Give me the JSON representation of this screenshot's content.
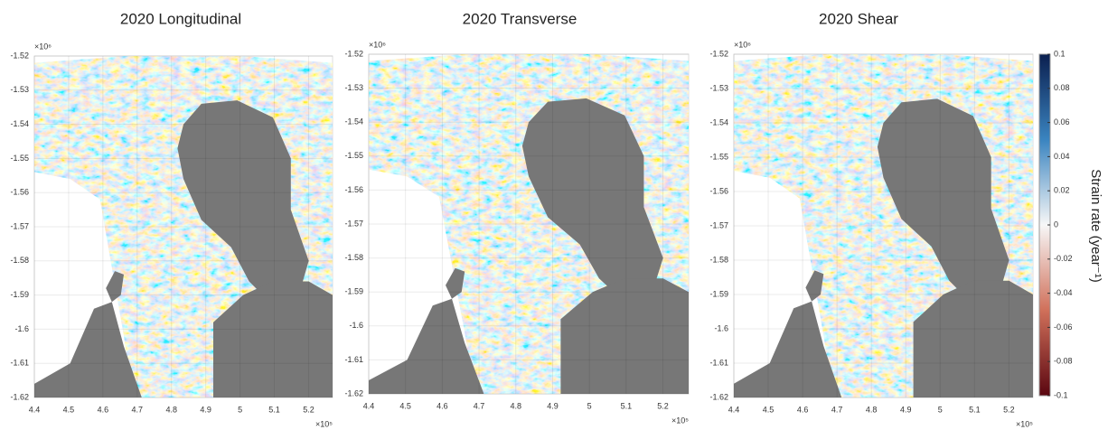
{
  "panels": [
    {
      "title": "2020 Longitudinal",
      "xlim": [
        4.4,
        5.27
      ],
      "ylim": [
        -1.62,
        -1.52
      ],
      "xticks": [
        4.4,
        4.5,
        4.6,
        4.7,
        4.8,
        4.9,
        5,
        5.1,
        5.2
      ],
      "yticks": [
        -1.52,
        -1.53,
        -1.54,
        -1.55,
        -1.56,
        -1.57,
        -1.58,
        -1.59,
        -1.6,
        -1.61,
        -1.62
      ],
      "x_exponent": "×10⁵",
      "y_exponent": "×10⁶"
    },
    {
      "title": "2020 Transverse",
      "xlim": [
        4.4,
        5.27
      ],
      "ylim": [
        -1.62,
        -1.52
      ],
      "xticks": [
        4.4,
        4.5,
        4.6,
        4.7,
        4.8,
        4.9,
        5,
        5.1,
        5.2
      ],
      "yticks": [
        -1.52,
        -1.53,
        -1.54,
        -1.55,
        -1.56,
        -1.57,
        -1.58,
        -1.59,
        -1.6,
        -1.61,
        -1.62
      ],
      "x_exponent": "×10⁵",
      "y_exponent": "×10⁶"
    },
    {
      "title": "2020 Shear",
      "xlim": [
        4.4,
        5.27
      ],
      "ylim": [
        -1.62,
        -1.52
      ],
      "xticks": [
        4.4,
        4.5,
        4.6,
        4.7,
        4.8,
        4.9,
        5,
        5.1,
        5.2
      ],
      "yticks": [
        -1.52,
        -1.53,
        -1.54,
        -1.55,
        -1.56,
        -1.57,
        -1.58,
        -1.59,
        -1.6,
        -1.61,
        -1.62
      ],
      "x_exponent": "×10⁵",
      "y_exponent": "×10⁶"
    }
  ],
  "colorbar": {
    "label": "Strain rate (year⁻¹)",
    "lim": [
      -0.1,
      0.1
    ],
    "ticks": [
      0.1,
      0.08,
      0.06,
      0.04,
      0.02,
      0,
      -0.02,
      -0.04,
      -0.06,
      -0.08,
      -0.1
    ]
  }
}
